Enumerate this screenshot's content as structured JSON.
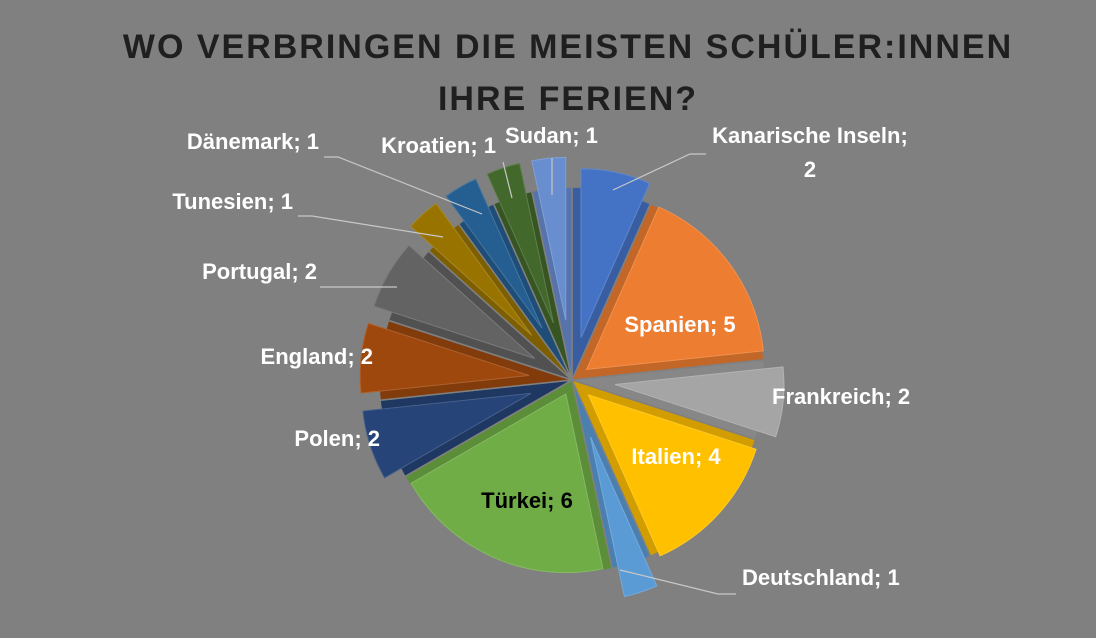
{
  "chart_data": {
    "type": "pie",
    "title": "WO VERBRINGEN DIE MEISTEN SCHÜLER:INNEN IHRE FERIEN?",
    "title_lines": [
      "WO VERBRINGEN DIE MEISTEN SCHÜLER:INNEN",
      "IHRE FERIEN?"
    ],
    "label_separator": "; ",
    "slices": [
      {
        "label": "Kanarische Inseln",
        "value": 2,
        "color": "#4472C4"
      },
      {
        "label": "Spanien",
        "value": 5,
        "color": "#ED7D31"
      },
      {
        "label": "Frankreich",
        "value": 2,
        "color": "#A5A5A5"
      },
      {
        "label": "Italien",
        "value": 4,
        "color": "#FFC000"
      },
      {
        "label": "Deutschland",
        "value": 1,
        "color": "#5B9BD5"
      },
      {
        "label": "Türkei",
        "value": 6,
        "color": "#70AD47"
      },
      {
        "label": "Polen",
        "value": 2,
        "color": "#264478"
      },
      {
        "label": "England",
        "value": 2,
        "color": "#9E480E"
      },
      {
        "label": "Portugal",
        "value": 2,
        "color": "#636363"
      },
      {
        "label": "Tunesien",
        "value": 1,
        "color": "#997300"
      },
      {
        "label": "Dänemark",
        "value": 1,
        "color": "#255E91"
      },
      {
        "label": "Kroatien",
        "value": 1,
        "color": "#43682B"
      },
      {
        "label": "Sudan",
        "value": 1,
        "color": "#698ED0"
      }
    ],
    "legend": "none"
  }
}
